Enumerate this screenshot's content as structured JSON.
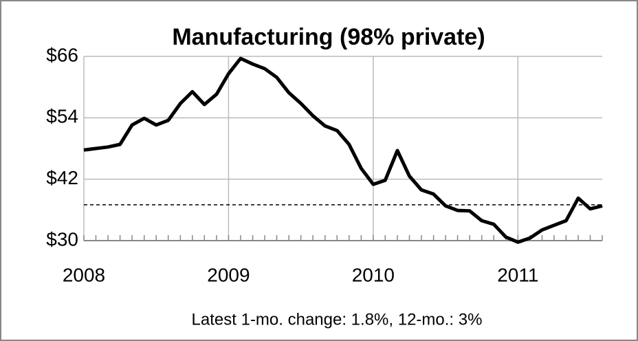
{
  "chart_data": {
    "type": "line",
    "title": "Manufacturing (98% private)",
    "annotation": "Latest 1-mo. change: 1.8%, 12-mo.: 3%",
    "x": [
      2008,
      2008.083,
      2008.167,
      2008.25,
      2008.333,
      2008.417,
      2008.5,
      2008.583,
      2008.667,
      2008.75,
      2008.833,
      2008.917,
      2009,
      2009.083,
      2009.167,
      2009.25,
      2009.333,
      2009.417,
      2009.5,
      2009.583,
      2009.667,
      2009.75,
      2009.833,
      2009.917,
      2010,
      2010.083,
      2010.167,
      2010.25,
      2010.333,
      2010.417,
      2010.5,
      2010.583,
      2010.667,
      2010.75,
      2010.833,
      2010.917,
      2011,
      2011.083,
      2011.167,
      2011.25,
      2011.333,
      2011.417,
      2011.5,
      2011.583
    ],
    "values": [
      47.7,
      48.0,
      48.3,
      48.8,
      52.6,
      53.9,
      52.6,
      53.5,
      56.8,
      59.1,
      56.6,
      58.6,
      62.6,
      65.6,
      64.5,
      63.6,
      61.9,
      58.9,
      56.8,
      54.4,
      52.4,
      51.5,
      48.8,
      44.1,
      41.0,
      41.8,
      47.6,
      42.6,
      39.9,
      39.1,
      36.8,
      35.9,
      35.8,
      33.9,
      33.2,
      30.7,
      29.7,
      30.5,
      32.1,
      33.0,
      33.9,
      38.3,
      36.2,
      36.8
    ],
    "color": "#000000",
    "reference": 37,
    "xlim": [
      2008,
      2011.583
    ],
    "xticks": [
      2008,
      2009,
      2010,
      2011
    ],
    "ylim": [
      30,
      66
    ],
    "yticks": [
      {
        "value": 30,
        "label": "$30"
      },
      {
        "value": 42,
        "label": "$42"
      },
      {
        "value": 54,
        "label": "$54"
      },
      {
        "value": 66,
        "label": "$66"
      }
    ],
    "grid": true
  }
}
